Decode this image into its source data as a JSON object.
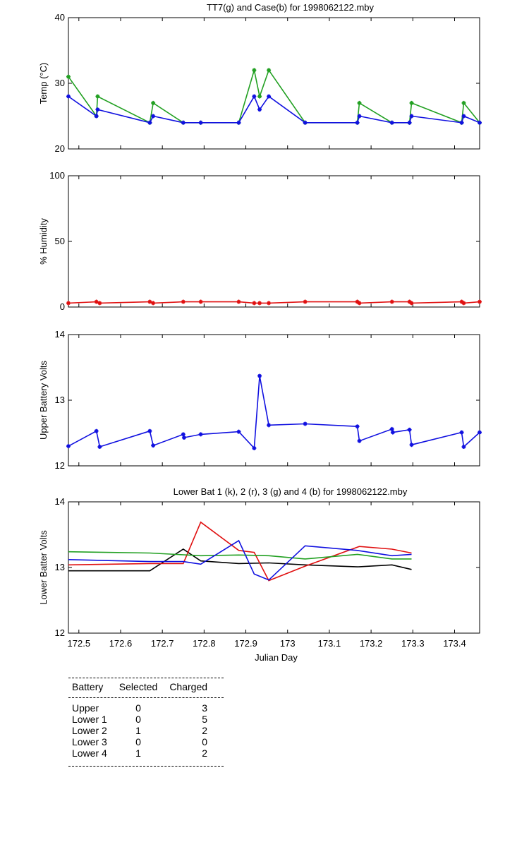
{
  "chart_data": [
    {
      "type": "line",
      "title": "TT7(g) and Case(b) for 1998062122.mby",
      "xlabel": "",
      "ylabel": "Temp  (°C)",
      "xlim": [
        172.475,
        173.46
      ],
      "ylim": [
        20,
        40
      ],
      "yticks": [
        "20",
        "30",
        "40"
      ],
      "markers": true,
      "series": [
        {
          "name": "TT7",
          "color": "#22a022",
          "x": [
            172.475,
            172.542,
            172.545,
            172.67,
            172.678,
            172.75,
            172.792,
            172.883,
            172.92,
            172.933,
            172.955,
            173.042,
            173.167,
            173.172,
            173.25,
            173.292,
            173.297,
            173.417,
            173.422,
            173.46
          ],
          "y": [
            31,
            25,
            28,
            24,
            27,
            24,
            24,
            24,
            32,
            28,
            32,
            24,
            24,
            27,
            24,
            24,
            27,
            24,
            27,
            24
          ]
        },
        {
          "name": "Case",
          "color": "#1010e0",
          "x": [
            172.475,
            172.542,
            172.545,
            172.67,
            172.678,
            172.75,
            172.792,
            172.883,
            172.92,
            172.933,
            172.955,
            173.042,
            173.167,
            173.172,
            173.25,
            173.292,
            173.297,
            173.417,
            173.422,
            173.46
          ],
          "y": [
            28,
            25,
            26,
            24,
            25,
            24,
            24,
            24,
            28,
            26,
            28,
            24,
            24,
            25,
            24,
            24,
            25,
            24,
            25,
            24
          ]
        }
      ]
    },
    {
      "type": "line",
      "title": "",
      "xlabel": "",
      "ylabel": "% Humidity",
      "xlim": [
        172.475,
        173.46
      ],
      "ylim": [
        0,
        100
      ],
      "yticks": [
        "0",
        "50",
        "100"
      ],
      "markers": true,
      "series": [
        {
          "name": "Humidity",
          "color": "#e01010",
          "x": [
            172.475,
            172.542,
            172.55,
            172.67,
            172.678,
            172.75,
            172.792,
            172.883,
            172.92,
            172.933,
            172.955,
            173.042,
            173.167,
            173.172,
            173.25,
            173.292,
            173.297,
            173.417,
            173.422,
            173.46
          ],
          "y": [
            3,
            4,
            3,
            4,
            3,
            4,
            4,
            4,
            3,
            3,
            3,
            4,
            4,
            3,
            4,
            4,
            3,
            4,
            3,
            4
          ]
        }
      ]
    },
    {
      "type": "line",
      "title": "",
      "xlabel": "",
      "ylabel": "Upper Battery Volts",
      "xlim": [
        172.475,
        173.46
      ],
      "ylim": [
        12,
        14
      ],
      "yticks": [
        "12",
        "13",
        "14"
      ],
      "markers": true,
      "series": [
        {
          "name": "Upper",
          "color": "#1010e0",
          "x": [
            172.475,
            172.542,
            172.55,
            172.67,
            172.678,
            172.75,
            172.752,
            172.792,
            172.883,
            172.92,
            172.933,
            172.955,
            173.042,
            173.167,
            173.172,
            173.25,
            173.252,
            173.292,
            173.297,
            173.417,
            173.422,
            173.46
          ],
          "y": [
            12.3,
            12.53,
            12.29,
            12.53,
            12.31,
            12.48,
            12.43,
            12.48,
            12.52,
            12.27,
            13.37,
            12.62,
            12.64,
            12.6,
            12.38,
            12.56,
            12.51,
            12.55,
            12.32,
            12.51,
            12.29,
            12.51
          ]
        }
      ]
    },
    {
      "type": "line",
      "title": "Lower Bat 1 (k), 2 (r), 3 (g) and 4 (b) for 1998062122.mby",
      "xlabel": "Julian Day",
      "ylabel": "Lower Batter Volts",
      "xlim": [
        172.475,
        173.46
      ],
      "ylim": [
        12,
        14
      ],
      "yticks": [
        "12",
        "13",
        "14"
      ],
      "xticks": [
        "172.5",
        "172.6",
        "172.7",
        "172.8",
        "172.9",
        "173",
        "173.1",
        "173.2",
        "173.3",
        "173.4"
      ],
      "markers": false,
      "series": [
        {
          "name": "Lower 1",
          "color": "#000000",
          "x": [
            172.475,
            172.67,
            172.75,
            172.792,
            172.883,
            172.955,
            173.042,
            173.167,
            173.25,
            173.297
          ],
          "y": [
            12.95,
            12.95,
            13.28,
            13.1,
            13.06,
            13.07,
            13.04,
            13.01,
            13.04,
            12.97
          ]
        },
        {
          "name": "Lower 2",
          "color": "#e01010",
          "x": [
            172.475,
            172.67,
            172.75,
            172.792,
            172.883,
            172.92,
            172.955,
            173.042,
            173.172,
            173.25,
            173.297
          ],
          "y": [
            13.04,
            13.06,
            13.06,
            13.69,
            13.26,
            13.23,
            12.8,
            13.02,
            13.32,
            13.28,
            13.22
          ]
        },
        {
          "name": "Lower 3",
          "color": "#22a022",
          "x": [
            172.475,
            172.67,
            172.792,
            172.883,
            172.955,
            173.042,
            173.167,
            173.25,
            173.297
          ],
          "y": [
            13.24,
            13.22,
            13.18,
            13.19,
            13.18,
            13.13,
            13.2,
            13.13,
            13.13
          ]
        },
        {
          "name": "Lower 4",
          "color": "#1010e0",
          "x": [
            172.475,
            172.67,
            172.75,
            172.792,
            172.883,
            172.92,
            172.955,
            173.042,
            173.167,
            173.25,
            173.297
          ],
          "y": [
            13.12,
            13.09,
            13.09,
            13.05,
            13.41,
            12.9,
            12.81,
            13.33,
            13.26,
            13.18,
            13.2
          ]
        }
      ]
    }
  ],
  "table": {
    "headers": [
      "Battery",
      "Selected",
      "Charged"
    ],
    "rows": [
      [
        "Upper",
        "0",
        "3"
      ],
      [
        "Lower 1",
        "0",
        "5"
      ],
      [
        "Lower 2",
        "1",
        "2"
      ],
      [
        "Lower 3",
        "0",
        "0"
      ],
      [
        "Lower 4",
        "1",
        "2"
      ]
    ]
  }
}
